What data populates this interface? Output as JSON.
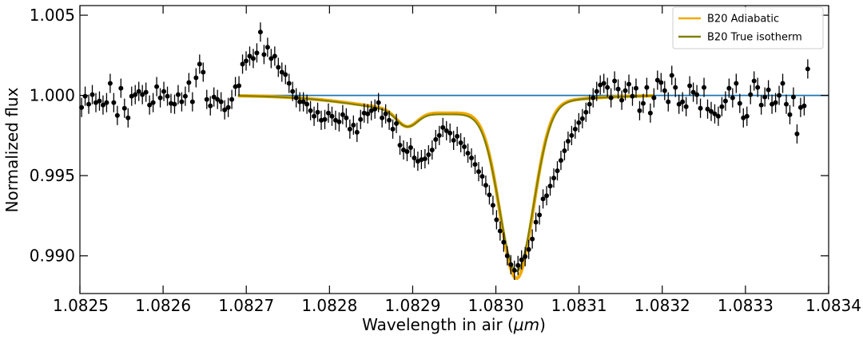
{
  "chart_data": {
    "type": "scatter",
    "xlabel": "Wavelength in air (",
    "xlabel_unit": "μm",
    "xlabel_close": ")",
    "ylabel": "Normalized flux",
    "xlim": [
      1.0825,
      1.0834
    ],
    "ylim": [
      0.98765,
      1.0056
    ],
    "x_ticks": [
      1.0825,
      1.0826,
      1.0827,
      1.0828,
      1.0829,
      1.083,
      1.0831,
      1.0832,
      1.0833,
      1.0834
    ],
    "x_tick_labels": [
      "1.0825",
      "1.0826",
      "1.0827",
      "1.0828",
      "1.0829",
      "1.0830",
      "1.0831",
      "1.0832",
      "1.0833",
      "1.0834"
    ],
    "y_ticks": [
      0.99,
      0.995,
      1.0,
      1.005
    ],
    "y_tick_labels": [
      "0.990",
      "0.995",
      "1.000",
      "1.005"
    ],
    "legend_position": "top-right",
    "grid": false,
    "series": [
      {
        "name": "B20 Adiabatic",
        "kind": "model",
        "color": "#f2a900"
      },
      {
        "name": "B20 True isotherm",
        "kind": "model",
        "color": "#808000"
      },
      {
        "kind": "baseline",
        "color": "#1f77b4",
        "x": [
          1.08269,
          1.0834
        ],
        "y": [
          1.0,
          1.0
        ]
      },
      {
        "kind": "data",
        "color": "#000000"
      }
    ],
    "models": {
      "x_range": [
        1.08269,
        1.08319
      ],
      "adiabatic": {
        "baseline": 1.0,
        "components": [
          {
            "center": 1.083025,
            "depth": 0.0107,
            "width": 2e-05
          },
          {
            "center": 1.082893,
            "depth": 0.00098,
            "width": 1.25e-05
          },
          {
            "center": 1.08294,
            "depth": 0.0011,
            "width": 9e-05
          }
        ]
      },
      "isotherm": {
        "baseline": 1.0,
        "components": [
          {
            "center": 1.083025,
            "depth": 0.0102,
            "width": 2.05e-05
          },
          {
            "center": 1.082893,
            "depth": 0.00092,
            "width": 1.25e-05
          },
          {
            "center": 1.08294,
            "depth": 0.00118,
            "width": 9e-05
          }
        ]
      }
    },
    "data_points": {
      "x_start": 1.082502,
      "x_step": 4.3e-06,
      "err": 0.0006,
      "y": [
        0.99925,
        0.99995,
        0.99945,
        1.00005,
        0.99955,
        0.99965,
        0.9994,
        0.99955,
        1.00075,
        0.99955,
        0.99875,
        1.00045,
        0.9992,
        0.9986,
        0.99995,
        1.00005,
        1.00025,
        1.00005,
        1.0002,
        0.9994,
        0.99955,
        1.00055,
        0.99985,
        1.00025,
        0.99995,
        0.9995,
        0.99945,
        1.00005,
        0.9996,
        0.99995,
        1.0008,
        0.9996,
        1.0011,
        1.00195,
        1.00145,
        0.99975,
        0.99935,
        0.9999,
        0.99975,
        0.9996,
        0.9991,
        0.99925,
        0.99975,
        1.00055,
        1.0006,
        1.00195,
        1.00215,
        1.00245,
        1.0023,
        1.00265,
        1.00395,
        1.00255,
        1.003,
        1.0023,
        1.00245,
        1.00175,
        1.00145,
        1.0013,
        1.00075,
        1.00025,
        0.99985,
        0.9996,
        0.9996,
        0.99945,
        0.99905,
        0.9987,
        0.99895,
        0.99845,
        0.9985,
        0.9989,
        0.9987,
        0.99845,
        0.99835,
        0.9988,
        0.9986,
        0.9979,
        0.99815,
        0.9977,
        0.9985,
        0.9989,
        0.99885,
        0.99905,
        0.99915,
        0.99955,
        0.9986,
        0.99885,
        0.99845,
        0.9979,
        0.99825,
        0.9969,
        0.9966,
        0.9965,
        0.99675,
        0.9961,
        0.9959,
        0.996,
        0.99605,
        0.9963,
        0.9966,
        0.99725,
        0.9975,
        0.998,
        0.9978,
        0.99765,
        0.9972,
        0.99745,
        0.99705,
        0.9968,
        0.9964,
        0.9961,
        0.9957,
        0.99525,
        0.99495,
        0.9944,
        0.9938,
        0.99315,
        0.99225,
        0.99155,
        0.99085,
        0.99,
        0.98945,
        0.9891,
        0.9894,
        0.98975,
        0.98995,
        0.9904,
        0.99105,
        0.9921,
        0.99255,
        0.99355,
        0.99375,
        0.99435,
        0.99485,
        0.9953,
        0.99595,
        0.99655,
        0.99715,
        0.9975,
        0.9979,
        0.9983,
        0.99855,
        0.99895,
        0.99945,
        0.99985,
        1.00025,
        1.00065,
        1.00075,
        1.0005,
        0.99985,
        1.0009,
        1.0004,
        0.9997,
        1.0003,
        1.0007,
        0.99995,
        1.00045,
        0.99905,
        0.9995,
        1.0005,
        0.9989,
        0.99985,
        1.00095,
        1.0008,
        1.0003,
        0.9996,
        1.00125,
        1.0005,
        0.99945,
        0.9996,
        0.9993,
        1.0006,
        1.0002,
        1.00005,
        0.9992,
        1.0005,
        0.99915,
        0.999,
        0.99885,
        0.9987,
        0.9993,
        0.99965,
        1.00045,
        0.99985,
        1.00075,
        0.9995,
        0.9986,
        0.9987,
        1.00005,
        1.0009,
        1.0005,
        0.9994,
        0.9999,
        1.00035,
        0.99945,
        0.99955,
        1.0,
        1.00075,
        0.99945,
        0.9988,
        0.9999,
        0.9976,
        0.99925,
        0.99935,
        1.00165
      ]
    }
  }
}
